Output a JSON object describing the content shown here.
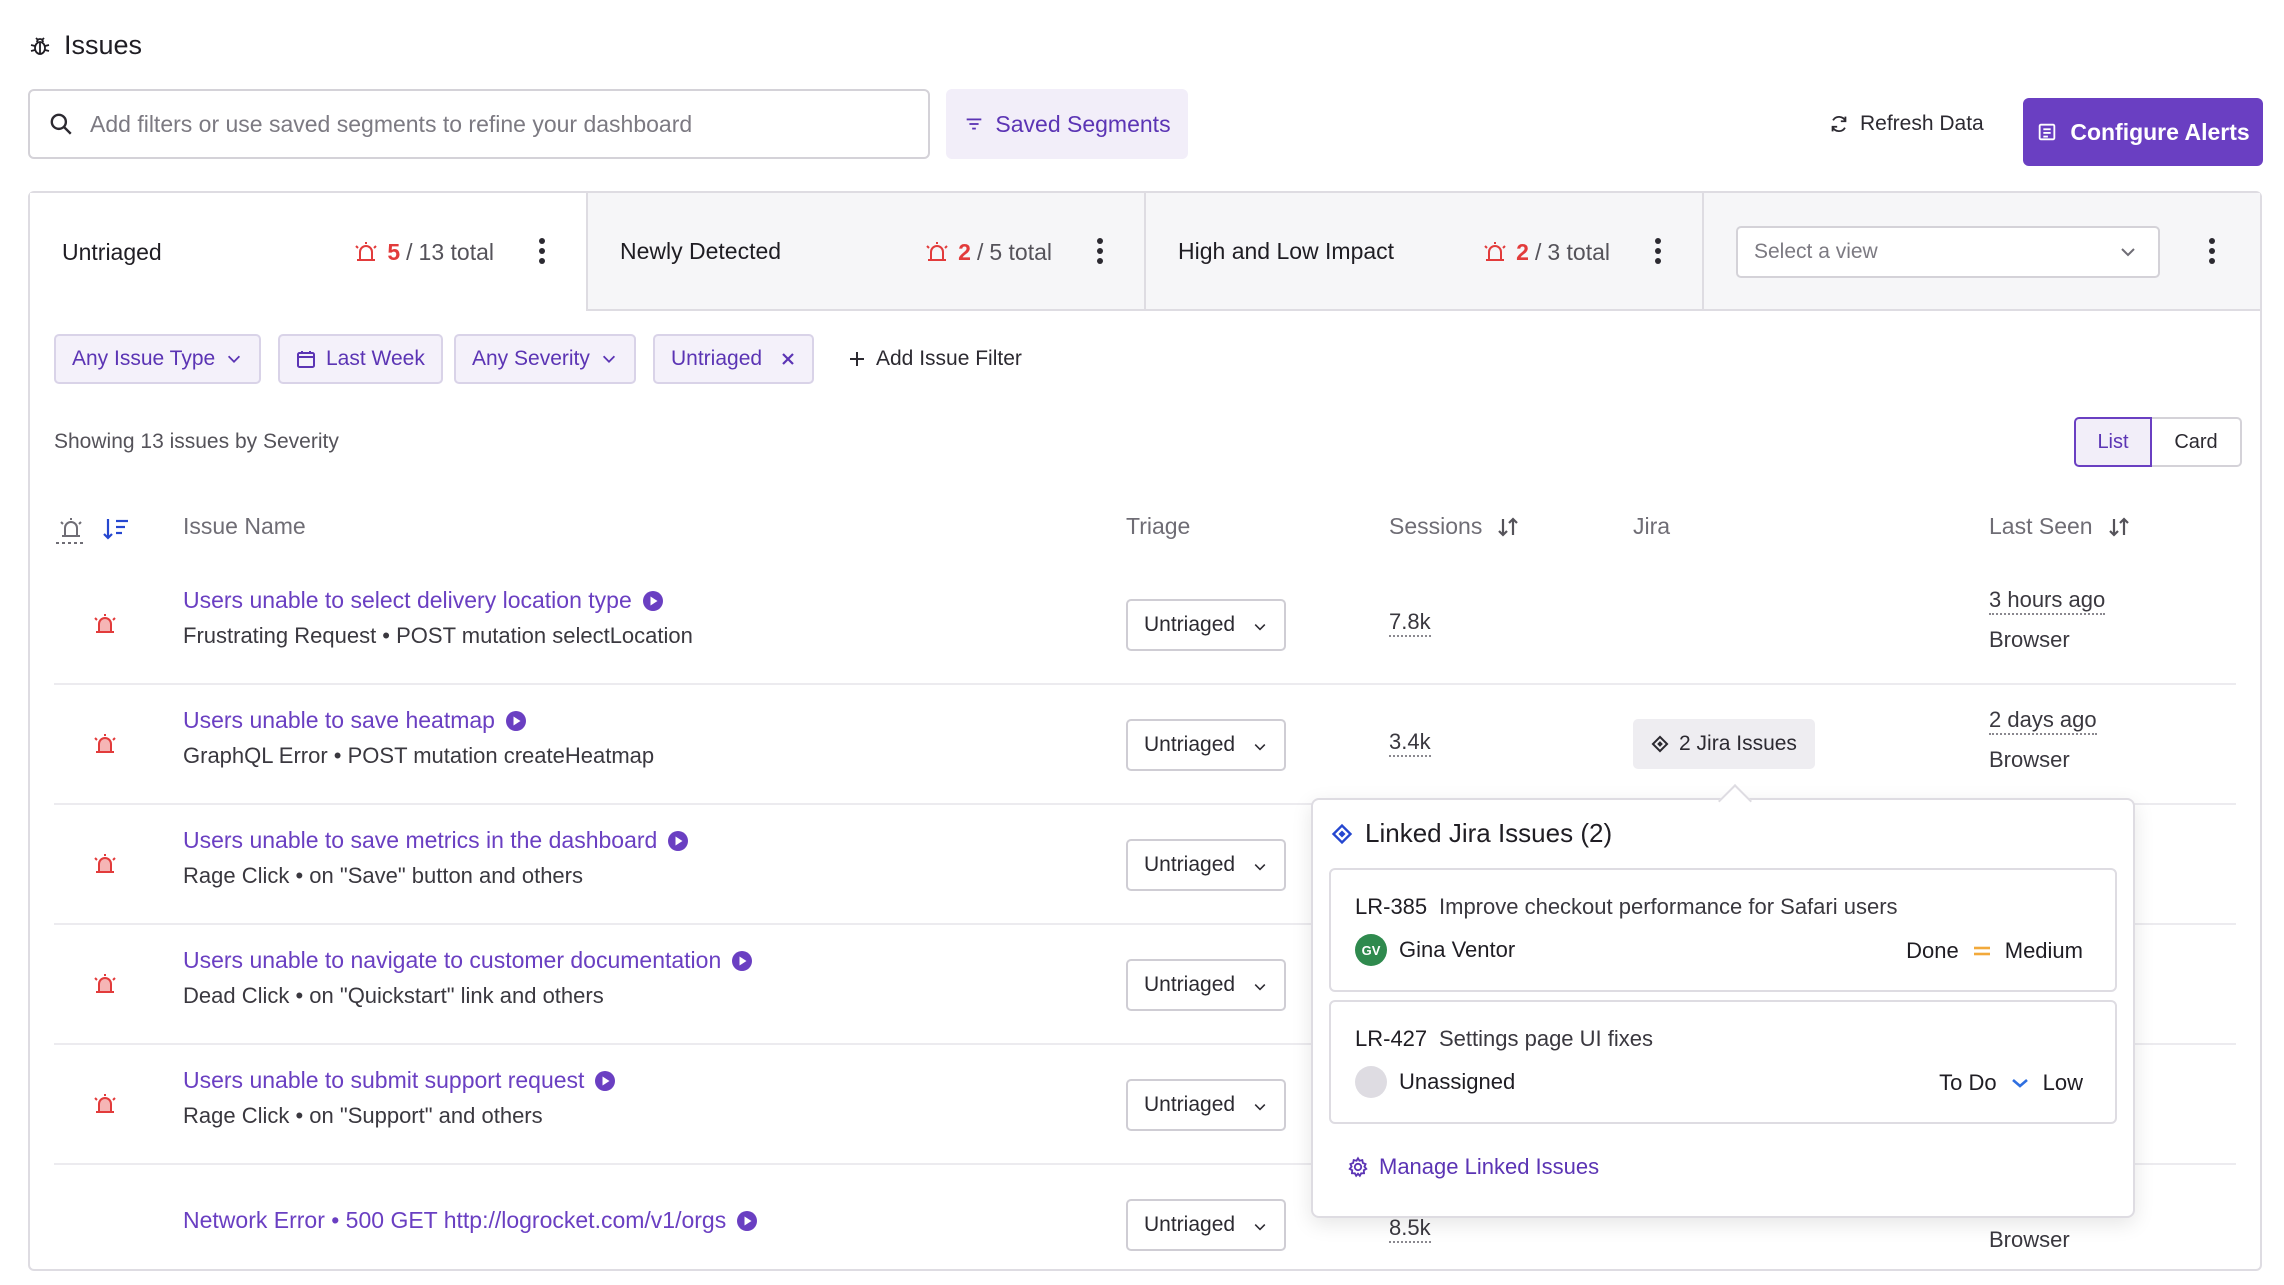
{
  "page": {
    "title": "Issues"
  },
  "search": {
    "placeholder": "Add filters or use saved segments to refine your dashboard"
  },
  "toolbar": {
    "saved_segments": "Saved Segments",
    "refresh": "Refresh Data",
    "configure_alerts": "Configure Alerts"
  },
  "tabs": [
    {
      "label": "Untriaged",
      "count": "5",
      "total": "13 total"
    },
    {
      "label": "Newly Detected",
      "count": "2",
      "total": "5 total"
    },
    {
      "label": "High and Low Impact",
      "count": "2",
      "total": "3 total"
    }
  ],
  "view_select": {
    "placeholder": "Select a view"
  },
  "filters": {
    "issue_type": "Any Issue Type",
    "date": "Last Week",
    "severity": "Any Severity",
    "status": "Untriaged",
    "add": "Add Issue Filter"
  },
  "showing": "Showing 13 issues by Severity",
  "view_toggle": {
    "list": "List",
    "card": "Card"
  },
  "columns": {
    "issue_name": "Issue Name",
    "triage": "Triage",
    "sessions": "Sessions",
    "jira": "Jira",
    "last_seen": "Last Seen"
  },
  "rows": [
    {
      "name": "Users unable to select delivery location type",
      "desc": "Frustrating Request • POST mutation selectLocation",
      "triage": "Untriaged",
      "sessions": "7.8k",
      "jira": "",
      "last_seen": "3 hours ago",
      "platform": "Browser"
    },
    {
      "name": "Users unable to save heatmap",
      "desc": "GraphQL Error • POST mutation createHeatmap",
      "triage": "Untriaged",
      "sessions": "3.4k",
      "jira": "2 Jira Issues",
      "last_seen": "2 days ago",
      "platform": "Browser"
    },
    {
      "name": "Users unable to save metrics in the dashboard",
      "desc": "Rage Click • on \"Save\" button and others",
      "triage": "Untriaged",
      "sessions": "",
      "jira": "",
      "last_seen": "",
      "platform": ""
    },
    {
      "name": "Users unable to navigate to customer documentation",
      "desc": "Dead Click • on \"Quickstart\" link and others",
      "triage": "Untriaged",
      "sessions": "",
      "jira": "",
      "last_seen": "",
      "platform": ""
    },
    {
      "name": "Users unable to submit support request",
      "desc": "Rage Click • on \"Support\" and others",
      "triage": "Untriaged",
      "sessions": "",
      "jira": "",
      "last_seen": "",
      "platform": ""
    },
    {
      "name": "Network Error • 500 GET http://logrocket.com/v1/orgs",
      "desc": "",
      "triage": "Untriaged",
      "sessions": "8.5k",
      "jira": "",
      "last_seen": "",
      "platform": "Browser"
    }
  ],
  "popover": {
    "title": "Linked Jira Issues (2)",
    "issues": [
      {
        "key": "LR-385",
        "summary": "Improve checkout performance for Safari users",
        "assignee": "Gina Ventor",
        "initials": "GV",
        "status": "Done",
        "priority": "Medium"
      },
      {
        "key": "LR-427",
        "summary": "Settings page UI fixes",
        "assignee": "Unassigned",
        "initials": "",
        "status": "To Do",
        "priority": "Low"
      }
    ],
    "manage": "Manage Linked Issues"
  },
  "colors": {
    "accent": "#6a3fc2",
    "alert_red": "#e23b3b",
    "jira_blue": "#2547d0",
    "priority_medium": "#f2a93b",
    "priority_low": "#2f6fe0",
    "avatar_green": "#2f8a4e"
  }
}
